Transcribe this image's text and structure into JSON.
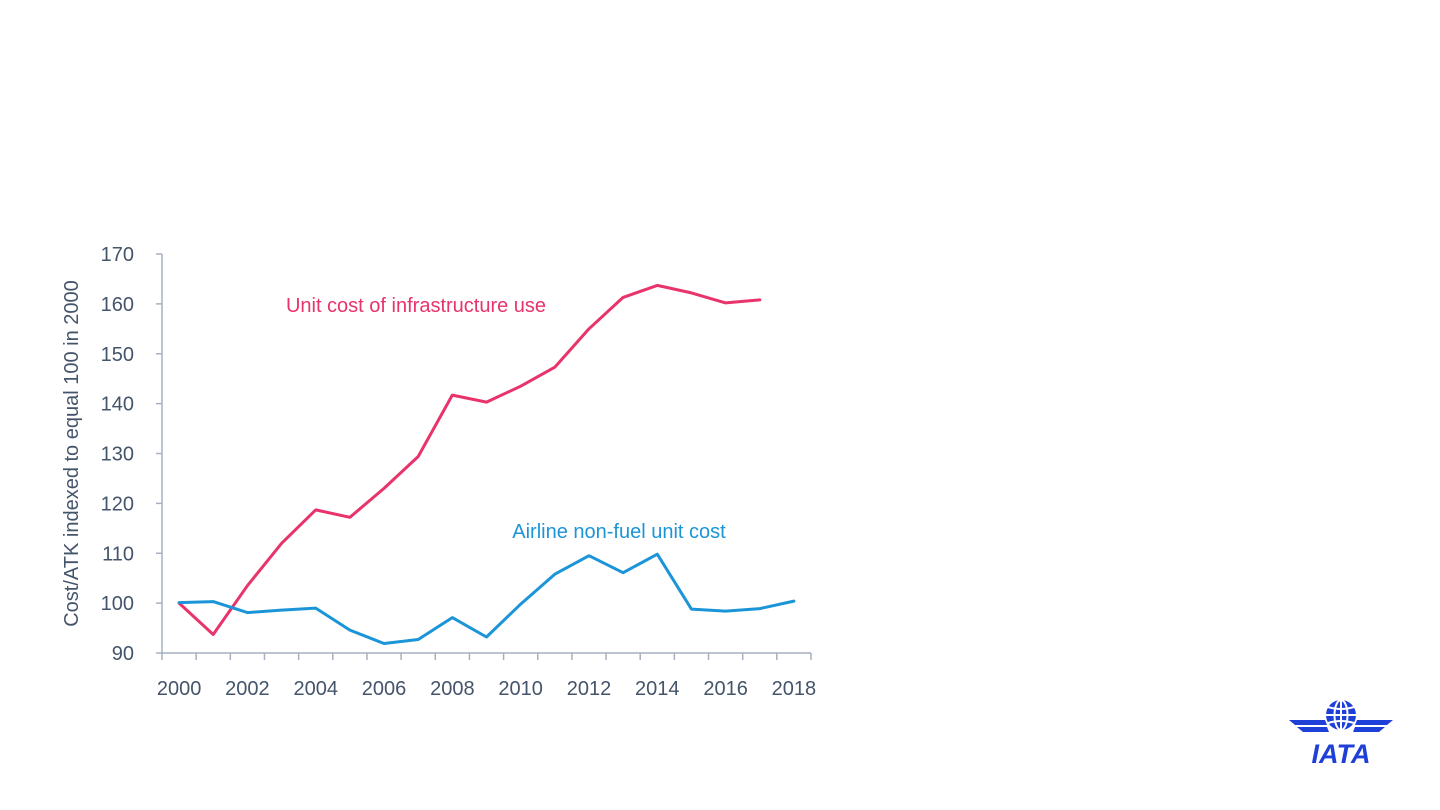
{
  "chart_data": {
    "type": "line",
    "ylabel": "Cost/ATK indexed to equal 100 in 2000",
    "xlabel": "",
    "ylim": [
      90,
      170
    ],
    "yticks": [
      90,
      100,
      110,
      120,
      130,
      140,
      150,
      160,
      170
    ],
    "xlim": [
      1999.5,
      2018.5
    ],
    "xtick_labels": [
      "2000",
      "2002",
      "2004",
      "2006",
      "2008",
      "2010",
      "2012",
      "2014",
      "2016",
      "2018"
    ],
    "grid": false,
    "series": [
      {
        "name": "Unit cost of infrastructure use",
        "color": "#e8336b",
        "x": [
          2000,
          2001,
          2002,
          2003,
          2004,
          2005,
          2006,
          2007,
          2008,
          2009,
          2010,
          2011,
          2012,
          2013,
          2014,
          2015,
          2016,
          2017
        ],
        "y": [
          100,
          93.7,
          103.5,
          112,
          118.7,
          117.2,
          123,
          129.4,
          141.7,
          140.3,
          143.5,
          147.3,
          155,
          161.3,
          163.7,
          162.2,
          160.2,
          160.8
        ]
      },
      {
        "name": "Airline non-fuel unit cost",
        "color": "#1b95d8",
        "x": [
          2000,
          2001,
          2002,
          2003,
          2004,
          2005,
          2006,
          2007,
          2008,
          2009,
          2010,
          2011,
          2012,
          2013,
          2014,
          2015,
          2016,
          2017,
          2018
        ],
        "y": [
          100.1,
          100.3,
          98.1,
          98.6,
          99,
          94.6,
          91.9,
          92.7,
          97.1,
          93.2,
          99.8,
          105.8,
          109.5,
          106.1,
          109.8,
          98.8,
          98.4,
          98.9,
          100.4
        ]
      }
    ]
  },
  "logo": {
    "text": "IATA",
    "color": "#1e3fd8"
  }
}
